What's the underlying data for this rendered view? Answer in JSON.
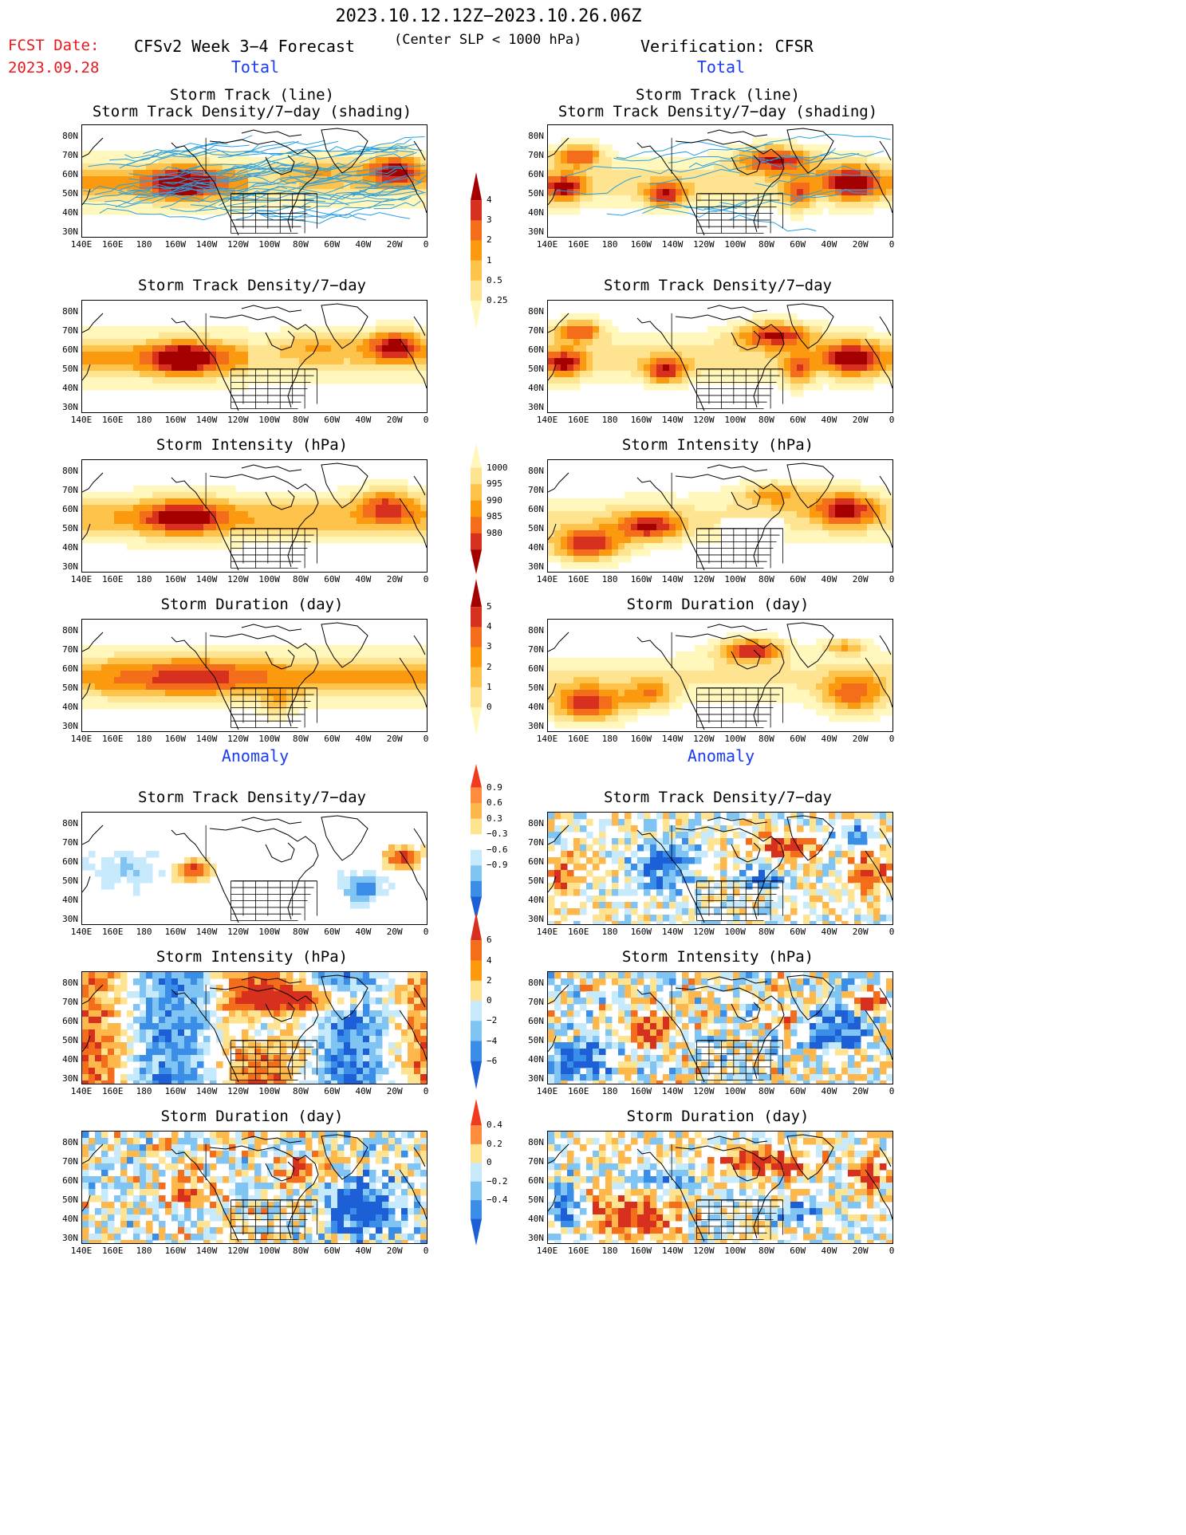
{
  "header": {
    "title": "2023.10.12.12Z−2023.10.26.06Z",
    "fcst_label": "FCST Date:",
    "fcst_value": "2023.09.28",
    "model_title": "CFSv2 Week 3−4 Forecast",
    "criteria": "(Center SLP < 1000 hPa)",
    "verification_title": "Verification: CFSR"
  },
  "sections": {
    "total_label": "Total",
    "anomaly_label": "Anomaly"
  },
  "axes": {
    "lat_ticks": [
      "80N",
      "70N",
      "60N",
      "50N",
      "40N",
      "30N"
    ],
    "lon_ticks": [
      "140E",
      "160E",
      "180",
      "160W",
      "140W",
      "120W",
      "100W",
      "80W",
      "60W",
      "40W",
      "20W",
      "0"
    ]
  },
  "panels": {
    "left": [
      {
        "title1": "Storm Track (line)",
        "title2": "Storm Track Density/7−day (shading)",
        "kind": "density",
        "scheme": "seq",
        "tracks": true
      },
      {
        "title1": "Storm Track Density/7−day",
        "title2": "",
        "kind": "density",
        "scheme": "seq",
        "tracks": false
      },
      {
        "title1": "Storm Intensity (hPa)",
        "title2": "",
        "kind": "intensity",
        "scheme": "seq",
        "tracks": false
      },
      {
        "title1": "Storm Duration (day)",
        "title2": "",
        "kind": "duration",
        "scheme": "seq",
        "tracks": false
      },
      {
        "title1": "Storm Track Density/7−day",
        "title2": "",
        "kind": "anom_density",
        "scheme": "div",
        "tracks": false
      },
      {
        "title1": "Storm Intensity (hPa)",
        "title2": "",
        "kind": "anom_intensity",
        "scheme": "div",
        "tracks": false
      },
      {
        "title1": "Storm Duration (day)",
        "title2": "",
        "kind": "anom_duration",
        "scheme": "div",
        "tracks": false
      }
    ],
    "right": [
      {
        "title1": "Storm Track (line)",
        "title2": "Storm Track Density/7−day (shading)",
        "kind": "density_v",
        "scheme": "seq",
        "tracks": true
      },
      {
        "title1": "Storm Track Density/7−day",
        "title2": "",
        "kind": "density_v",
        "scheme": "seq",
        "tracks": false
      },
      {
        "title1": "Storm Intensity (hPa)",
        "title2": "",
        "kind": "intensity_v",
        "scheme": "seq",
        "tracks": false
      },
      {
        "title1": "Storm Duration (day)",
        "title2": "",
        "kind": "duration_v",
        "scheme": "seq",
        "tracks": false
      },
      {
        "title1": "Storm Track Density/7−day",
        "title2": "",
        "kind": "anom_density_v",
        "scheme": "div",
        "tracks": false
      },
      {
        "title1": "Storm Intensity (hPa)",
        "title2": "",
        "kind": "anom_intensity_v",
        "scheme": "div",
        "tracks": false
      },
      {
        "title1": "Storm Duration (day)",
        "title2": "",
        "kind": "anom_duration_v",
        "scheme": "div",
        "tracks": false
      }
    ]
  },
  "colorbars": [
    {
      "id": "density",
      "labels": [
        "4",
        "3",
        "2",
        "1",
        "0.5",
        "0.25"
      ],
      "colors": [
        "#a50000",
        "#d7301f",
        "#f46d1a",
        "#fc9a0f",
        "#fdc34a",
        "#fee391",
        "#fff7bc"
      ]
    },
    {
      "id": "intensity",
      "labels": [
        "1000",
        "995",
        "990",
        "985",
        "980"
      ],
      "colors": [
        "#fff7bc",
        "#fee391",
        "#fdc34a",
        "#fc9a0f",
        "#f46d1a",
        "#d7301f",
        "#a50000"
      ]
    },
    {
      "id": "duration",
      "labels": [
        "5",
        "4",
        "3",
        "2",
        "1",
        "0"
      ],
      "colors": [
        "#a50000",
        "#d7301f",
        "#f46d1a",
        "#fc9a0f",
        "#fdc34a",
        "#fee391",
        "#fff7bc"
      ]
    },
    {
      "id": "anom_density",
      "labels": [
        "0.9",
        "0.6",
        "0.3",
        "−0.3",
        "−0.6",
        "−0.9"
      ],
      "colors": [
        "#f03b20",
        "#fd8d3c",
        "#fdb74a",
        "#fee391",
        "#ffffff",
        "#c6e9fb",
        "#80c4f4",
        "#3a8ee8",
        "#1c5fd6"
      ]
    },
    {
      "id": "anom_intensity",
      "labels": [
        "6",
        "4",
        "2",
        "0",
        "−2",
        "−4",
        "−6"
      ],
      "colors": [
        "#d7301f",
        "#f46d1a",
        "#fc9a0f",
        "#fee391",
        "#c6e9fb",
        "#80c4f4",
        "#3a8ee8",
        "#1c5fd6"
      ]
    },
    {
      "id": "anom_duration",
      "labels": [
        "0.4",
        "0.2",
        "0",
        "−0.2",
        "−0.4"
      ],
      "colors": [
        "#f03b20",
        "#fd8d3c",
        "#fee391",
        "#c6e9fb",
        "#80c4f4",
        "#3a8ee8",
        "#1c5fd6"
      ]
    }
  ],
  "palette": {
    "track_line": "#2a9fe0",
    "border_line": "#000000"
  }
}
